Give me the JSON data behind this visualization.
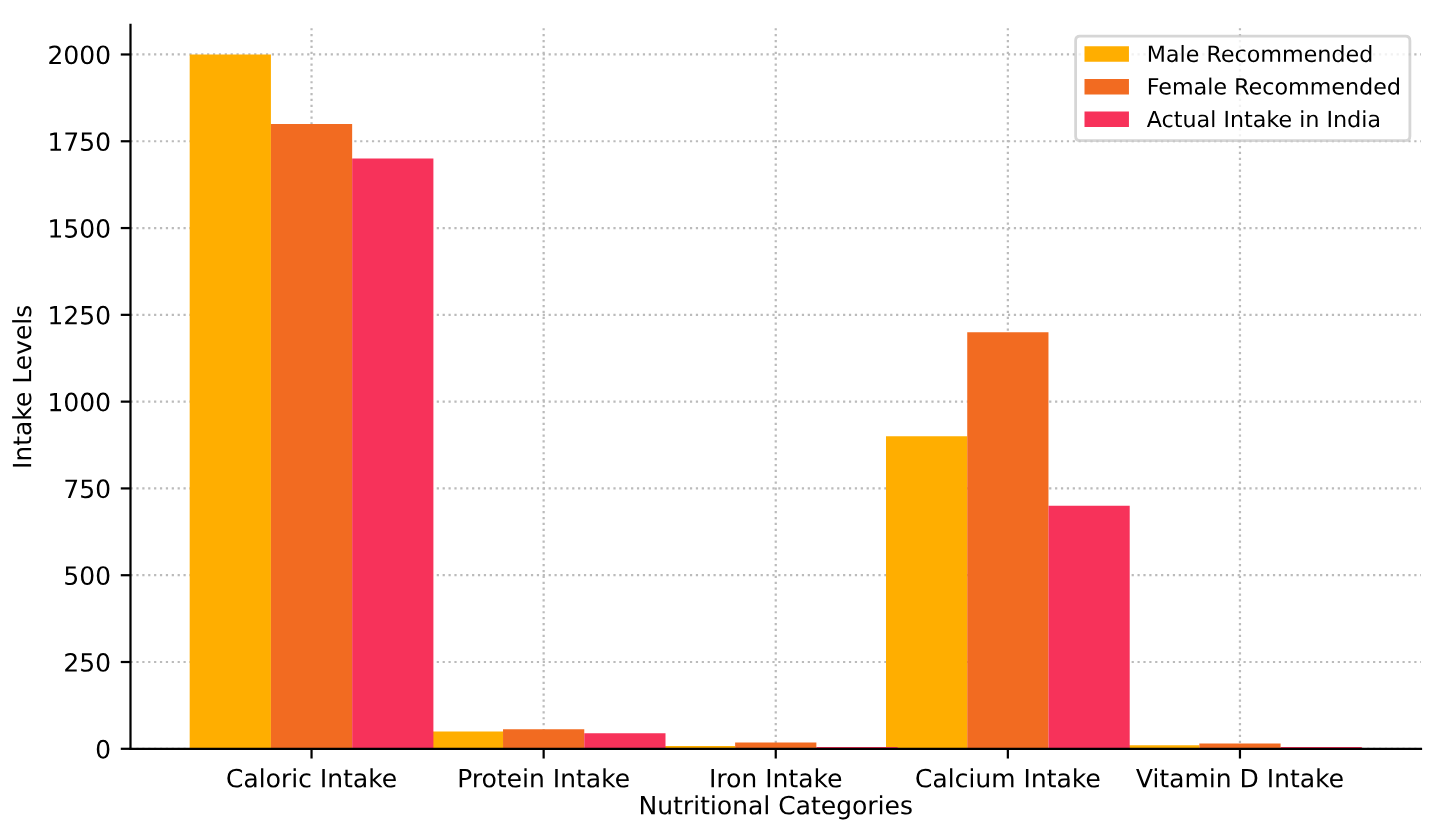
{
  "chart_data": {
    "type": "bar",
    "xlabel": "Nutritional Categories",
    "ylabel": "Intake Levels",
    "categories": [
      "Caloric Intake",
      "Protein Intake",
      "Iron Intake",
      "Calcium Intake",
      "Vitamin D Intake"
    ],
    "series": [
      {
        "name": "Male Recommended",
        "color": "#ffae00",
        "values": [
          2000,
          50,
          8,
          900,
          10
        ]
      },
      {
        "name": "Female Recommended",
        "color": "#f26b21",
        "values": [
          1800,
          56,
          18,
          1200,
          15
        ]
      },
      {
        "name": "Actual Intake in India",
        "color": "#f7325a",
        "values": [
          1700,
          45,
          5,
          700,
          5
        ]
      }
    ],
    "ylim": [
      0,
      2085
    ],
    "yticks": [
      0,
      250,
      500,
      750,
      1000,
      1250,
      1500,
      1750,
      2000
    ],
    "grid": true,
    "legend": "top right"
  }
}
